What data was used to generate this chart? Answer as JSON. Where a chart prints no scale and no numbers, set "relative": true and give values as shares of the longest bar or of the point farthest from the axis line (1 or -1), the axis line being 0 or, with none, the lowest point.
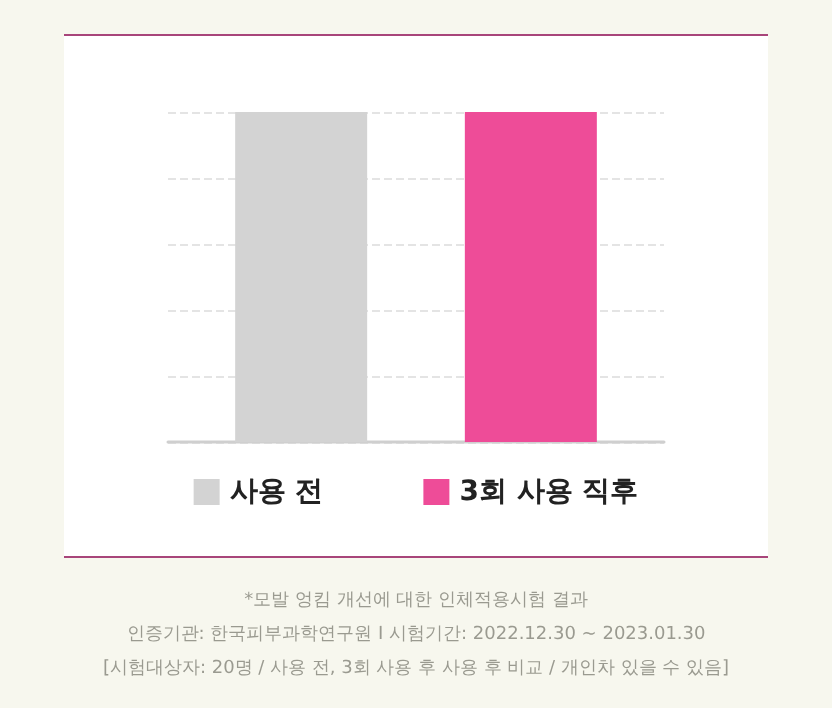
{
  "chart_data": {
    "type": "bar",
    "relative": true,
    "categories": [
      null
    ],
    "series": [
      {
        "name": "사용 전",
        "color": "#d3d3d3",
        "values": [
          1
        ]
      },
      {
        "name": "3회 사용 직후",
        "color": "#ee4c98",
        "values": [
          1
        ]
      }
    ],
    "grid": "y",
    "legend": "bottom",
    "annotations": [
      "*모발 엉킴 개선에 대한 인체적용시험 결과",
      "인증기관: 한국피부과학연구원 I 시험기간: 2022.12.30 ~ 2023.01.30",
      "[시험대상자: 20명 / 사용 전, 3회 사용 후 사용 후 비교 / 개인차 있을 수 있음]"
    ]
  }
}
